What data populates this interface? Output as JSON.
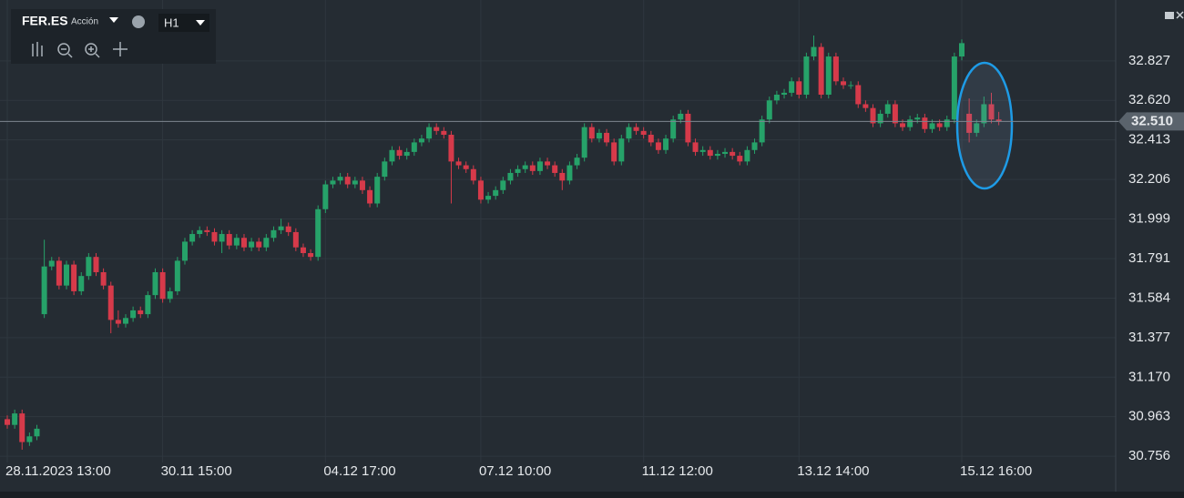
{
  "toolbar": {
    "symbol": "FER.ES",
    "kind": "Acción",
    "timeframe": "H1"
  },
  "chart_data": {
    "type": "candlestick",
    "categories": [
      "28.11.2023 13:00",
      null,
      null,
      null,
      null,
      null,
      null,
      null,
      null,
      null,
      null,
      null,
      null,
      null,
      null,
      null,
      null,
      null,
      null,
      null,
      null,
      "30.11 15:00",
      null,
      null,
      null,
      null,
      null,
      null,
      null,
      null,
      null,
      null,
      null,
      null,
      null,
      null,
      null,
      null,
      null,
      null,
      null,
      null,
      null,
      "04.12 17:00",
      null,
      null,
      null,
      null,
      null,
      null,
      null,
      null,
      null,
      null,
      null,
      null,
      null,
      null,
      null,
      null,
      null,
      null,
      null,
      null,
      "07.12 10:00",
      null,
      null,
      null,
      null,
      null,
      null,
      null,
      null,
      null,
      null,
      null,
      null,
      null,
      null,
      null,
      null,
      null,
      null,
      null,
      null,
      null,
      "11.12 12:00",
      null,
      null,
      null,
      null,
      null,
      null,
      null,
      null,
      null,
      null,
      null,
      null,
      null,
      null,
      null,
      null,
      null,
      null,
      null,
      null,
      "13.12 14:00",
      null,
      null,
      null,
      null,
      null,
      null,
      null,
      null,
      null,
      null,
      null,
      null,
      null,
      null,
      null,
      null,
      null,
      null,
      null,
      null,
      null,
      "15.12 16:00",
      null,
      null,
      null,
      null,
      null
    ],
    "open": [
      30.95,
      30.92,
      30.98,
      30.83,
      30.86,
      31.5,
      31.75,
      31.78,
      31.65,
      31.76,
      31.62,
      31.7,
      31.8,
      31.72,
      31.65,
      31.47,
      31.45,
      31.48,
      31.52,
      31.5,
      31.6,
      31.72,
      31.58,
      31.62,
      31.78,
      31.88,
      31.92,
      31.94,
      31.93,
      31.88,
      31.92,
      31.86,
      31.9,
      31.85,
      31.88,
      31.85,
      31.9,
      31.94,
      31.96,
      31.93,
      31.85,
      31.82,
      31.8,
      32.05,
      32.18,
      32.2,
      32.22,
      32.18,
      32.2,
      32.15,
      32.08,
      32.22,
      32.3,
      32.36,
      32.33,
      32.35,
      32.4,
      32.42,
      32.48,
      32.46,
      32.44,
      32.3,
      32.28,
      32.26,
      32.2,
      32.1,
      32.12,
      32.15,
      32.2,
      32.24,
      32.26,
      32.28,
      32.25,
      32.3,
      32.28,
      32.24,
      32.2,
      32.28,
      32.32,
      32.48,
      32.42,
      32.45,
      32.4,
      32.3,
      32.42,
      32.48,
      32.46,
      32.44,
      32.4,
      32.36,
      32.42,
      32.52,
      32.55,
      32.4,
      32.35,
      32.36,
      32.33,
      32.34,
      32.35,
      32.33,
      32.3,
      32.36,
      32.4,
      32.52,
      32.62,
      32.65,
      32.66,
      32.72,
      32.65,
      32.85,
      32.9,
      32.65,
      32.85,
      32.72,
      32.7,
      32.7,
      32.6,
      32.58,
      32.5,
      32.55,
      32.6,
      32.5,
      32.48,
      32.52,
      32.53,
      32.47,
      32.5,
      32.48,
      32.52,
      32.85,
      32.55,
      32.45,
      32.5,
      32.6,
      32.52
    ],
    "high": [
      30.97,
      31.0,
      31.0,
      30.88,
      30.92,
      31.89,
      31.8,
      31.8,
      31.78,
      31.78,
      31.72,
      31.82,
      31.82,
      31.74,
      31.67,
      31.52,
      31.5,
      31.54,
      31.54,
      31.62,
      31.74,
      31.74,
      31.64,
      31.8,
      31.9,
      31.94,
      31.96,
      31.96,
      31.95,
      31.94,
      31.94,
      31.92,
      31.92,
      31.9,
      31.9,
      31.92,
      31.96,
      32.0,
      31.98,
      31.95,
      31.87,
      31.84,
      32.07,
      32.2,
      32.22,
      32.24,
      32.24,
      32.22,
      32.22,
      32.17,
      32.24,
      32.32,
      32.38,
      32.38,
      32.37,
      32.42,
      32.44,
      32.5,
      32.5,
      32.48,
      32.46,
      32.32,
      32.3,
      32.28,
      32.22,
      32.14,
      32.17,
      32.22,
      32.26,
      32.28,
      32.3,
      32.3,
      32.32,
      32.32,
      32.3,
      32.26,
      32.3,
      32.34,
      32.5,
      32.5,
      32.47,
      32.47,
      32.42,
      32.44,
      32.5,
      32.5,
      32.48,
      32.46,
      32.42,
      32.44,
      32.54,
      32.57,
      32.57,
      32.42,
      32.38,
      32.38,
      32.36,
      32.37,
      32.37,
      32.35,
      32.38,
      32.42,
      32.54,
      32.64,
      32.67,
      32.68,
      32.74,
      32.74,
      32.87,
      32.96,
      32.92,
      32.87,
      32.87,
      32.74,
      32.72,
      32.72,
      32.62,
      32.6,
      32.57,
      32.62,
      32.62,
      32.52,
      32.54,
      32.55,
      32.55,
      32.52,
      32.52,
      32.54,
      32.87,
      32.94,
      32.63,
      32.52,
      32.64,
      32.66,
      32.56
    ],
    "low": [
      30.9,
      30.9,
      30.79,
      30.81,
      30.84,
      31.48,
      31.73,
      31.63,
      31.63,
      31.6,
      31.6,
      31.68,
      31.7,
      31.63,
      31.4,
      31.43,
      31.43,
      31.46,
      31.48,
      31.48,
      31.58,
      31.56,
      31.56,
      31.6,
      31.76,
      31.86,
      31.9,
      31.91,
      31.86,
      31.82,
      31.84,
      31.84,
      31.83,
      31.83,
      31.83,
      31.83,
      31.88,
      31.92,
      31.91,
      31.83,
      31.8,
      31.78,
      31.78,
      32.03,
      32.16,
      32.18,
      32.16,
      32.16,
      32.13,
      32.06,
      32.06,
      32.2,
      32.28,
      32.31,
      32.31,
      32.33,
      32.38,
      32.4,
      32.44,
      32.42,
      32.08,
      32.26,
      32.24,
      32.18,
      32.08,
      32.08,
      32.1,
      32.13,
      32.18,
      32.22,
      32.24,
      32.23,
      32.23,
      32.26,
      32.22,
      32.15,
      32.18,
      32.26,
      32.3,
      32.4,
      32.4,
      32.38,
      32.28,
      32.28,
      32.4,
      32.44,
      32.42,
      32.38,
      32.34,
      32.34,
      32.4,
      32.5,
      32.38,
      32.33,
      32.33,
      32.31,
      32.31,
      32.32,
      32.31,
      32.28,
      32.28,
      32.34,
      32.38,
      32.5,
      32.6,
      32.63,
      32.64,
      32.63,
      32.63,
      32.83,
      32.63,
      32.63,
      32.7,
      32.68,
      32.68,
      32.58,
      32.56,
      32.48,
      32.48,
      32.53,
      32.48,
      32.46,
      32.46,
      32.5,
      32.45,
      32.45,
      32.46,
      32.46,
      32.5,
      32.83,
      32.4,
      32.43,
      32.48,
      32.5,
      32.49
    ],
    "close": [
      30.92,
      30.98,
      30.83,
      30.86,
      30.9,
      31.75,
      31.78,
      31.65,
      31.76,
      31.62,
      31.7,
      31.8,
      31.72,
      31.65,
      31.47,
      31.45,
      31.48,
      31.52,
      31.5,
      31.6,
      31.72,
      31.58,
      31.62,
      31.78,
      31.88,
      31.92,
      31.94,
      31.93,
      31.88,
      31.92,
      31.86,
      31.9,
      31.85,
      31.88,
      31.85,
      31.9,
      31.94,
      31.96,
      31.93,
      31.85,
      31.82,
      31.8,
      32.05,
      32.18,
      32.2,
      32.22,
      32.18,
      32.2,
      32.15,
      32.08,
      32.22,
      32.3,
      32.36,
      32.33,
      32.35,
      32.4,
      32.42,
      32.48,
      32.46,
      32.44,
      32.3,
      32.28,
      32.26,
      32.2,
      32.1,
      32.12,
      32.15,
      32.2,
      32.24,
      32.26,
      32.28,
      32.25,
      32.3,
      32.28,
      32.24,
      32.2,
      32.28,
      32.32,
      32.48,
      32.42,
      32.45,
      32.4,
      32.3,
      32.42,
      32.48,
      32.46,
      32.44,
      32.4,
      32.36,
      32.42,
      32.52,
      32.55,
      32.4,
      32.35,
      32.36,
      32.33,
      32.34,
      32.35,
      32.33,
      32.3,
      32.36,
      32.4,
      32.52,
      32.62,
      32.65,
      32.66,
      32.72,
      32.65,
      32.85,
      32.9,
      32.65,
      32.85,
      32.72,
      32.7,
      32.7,
      32.6,
      32.58,
      32.5,
      32.55,
      32.6,
      32.5,
      32.48,
      32.52,
      32.53,
      32.47,
      32.5,
      32.48,
      32.52,
      32.85,
      32.92,
      32.45,
      32.5,
      32.6,
      32.52,
      32.51
    ],
    "up_color": "#26a269",
    "down_color": "#d63a4a",
    "ylim": [
      30.723,
      33.146
    ],
    "yticks": [
      30.756,
      30.963,
      {
        "value": 31.17,
        "label": "31.170"
      },
      31.377,
      31.584,
      31.791,
      31.999,
      32.206,
      32.413,
      {
        "value": 32.62,
        "label": "32.620"
      },
      32.827
    ],
    "current_price": {
      "value": 32.51,
      "label": "32.510"
    },
    "grid": true
  }
}
